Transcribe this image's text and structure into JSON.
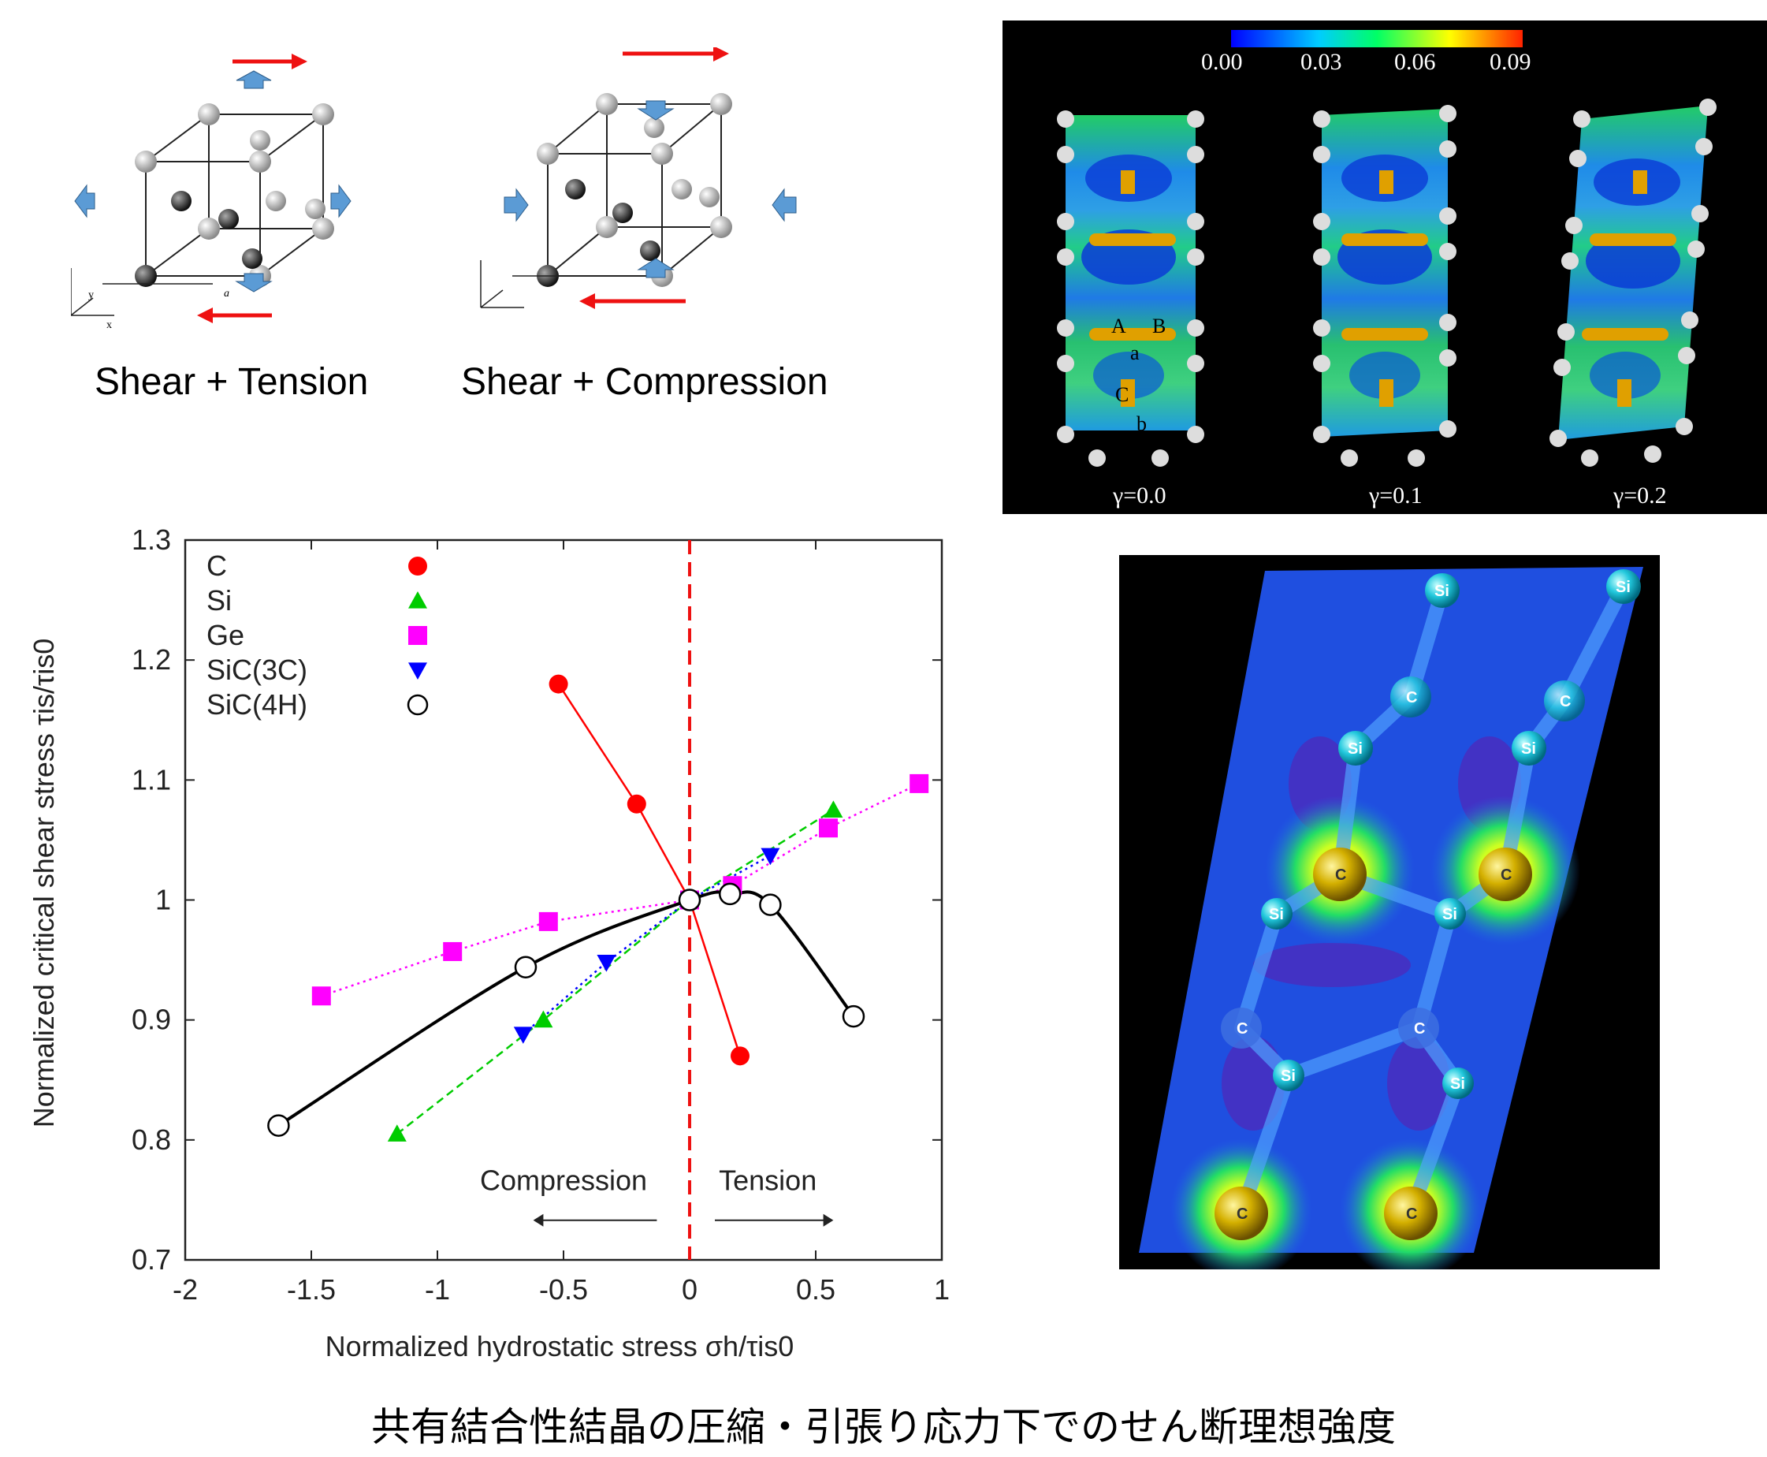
{
  "diagrams": {
    "left_caption": "Shear + Tension",
    "right_caption": "Shear + Compression",
    "axis_z": "z",
    "axis_y": "y",
    "axis_x": "x",
    "lattice_a": "a"
  },
  "colorbar": {
    "ticks": [
      "0.00",
      "0.03",
      "0.06",
      "0.09"
    ],
    "strain_labels": [
      "γ=0.0",
      "γ=0.1",
      "γ=0.2"
    ],
    "site_labels": [
      "A",
      "B",
      "a",
      "C",
      "b"
    ]
  },
  "crystal_labels": {
    "si": "Si",
    "c": "C"
  },
  "chart_data": {
    "type": "scatter",
    "xlabel": "Normalized hydrostatic stress σh/τis0",
    "ylabel": "Normalized critical shear stress τis/τis0",
    "xlim": [
      -2,
      1
    ],
    "ylim": [
      0.7,
      1.3
    ],
    "xticks": [
      "-2",
      "-1.5",
      "-1",
      "-0.5",
      "0",
      "0.5",
      "1"
    ],
    "yticks": [
      "0.7",
      "0.8",
      "0.9",
      "1",
      "1.1",
      "1.2",
      "1.3"
    ],
    "legend_placement": "top-left",
    "annotations": {
      "compression": "Compression",
      "tension": "Tension"
    },
    "series": [
      {
        "name": "C",
        "color": "#ff0000",
        "marker": "circle",
        "line": "solid",
        "x": [
          -0.52,
          -0.21,
          0.0,
          0.2
        ],
        "y": [
          1.18,
          1.08,
          1.0,
          0.87
        ]
      },
      {
        "name": "Si",
        "color": "#00cc00",
        "marker": "triangle-up",
        "line": "dashed",
        "x": [
          -1.16,
          -0.58,
          0.0,
          0.57
        ],
        "y": [
          0.805,
          0.9,
          1.0,
          1.075
        ]
      },
      {
        "name": "Ge",
        "color": "#ff00ff",
        "marker": "square",
        "line": "dotted",
        "x": [
          -1.46,
          -0.94,
          -0.56,
          0.0,
          0.17,
          0.55,
          0.91
        ],
        "y": [
          0.92,
          0.957,
          0.982,
          1.0,
          1.012,
          1.06,
          1.097
        ]
      },
      {
        "name": "SiC(3C)",
        "color": "#0000ff",
        "marker": "triangle-down",
        "line": "dotted",
        "x": [
          -0.66,
          -0.33,
          0.0,
          0.32
        ],
        "y": [
          0.888,
          0.948,
          1.0,
          1.037
        ]
      },
      {
        "name": "SiC(4H)",
        "color": "#000000",
        "marker": "open-circle",
        "line": "smooth",
        "x": [
          -1.63,
          -0.65,
          0.0,
          0.16,
          0.32,
          0.65
        ],
        "y": [
          0.812,
          0.944,
          1.0,
          1.005,
          0.996,
          0.903
        ]
      }
    ]
  },
  "footer": {
    "caption": "共有結合性結晶の圧縮・引張り応力下でのせん断理想強度"
  }
}
